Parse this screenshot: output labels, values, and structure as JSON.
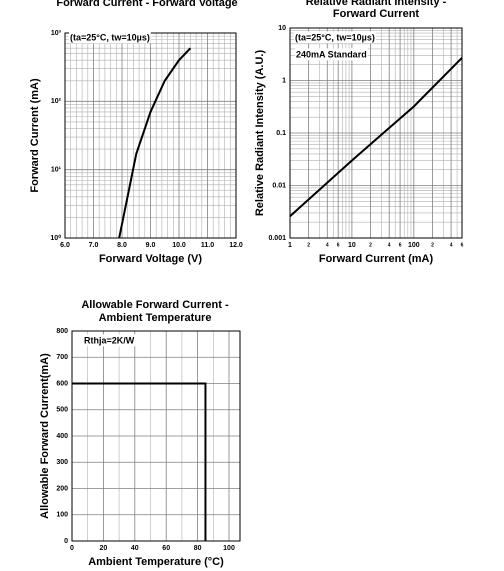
{
  "chart_data": [
    {
      "type": "line",
      "title": [
        "Forward Current - Forward Voltage"
      ],
      "x_label": "Forward Voltage (V)",
      "y_label": "Forward Current (mA)",
      "annotations": [
        "(ta=25°C, tw=10µs)"
      ],
      "xscale": "linear",
      "yscale": "log",
      "grid": true,
      "color": "#000000",
      "xlim": [
        6,
        12
      ],
      "xticks": [
        {
          "value": 6,
          "label": "6.0"
        },
        {
          "value": 7,
          "label": "7.0"
        },
        {
          "value": 8,
          "label": "8.0"
        },
        {
          "value": 9,
          "label": "9.0"
        },
        {
          "value": 10,
          "label": "10.0"
        },
        {
          "value": 11,
          "label": "11.0"
        },
        {
          "value": 12,
          "label": "12.0"
        }
      ],
      "ylim": [
        1,
        1000
      ],
      "yticks": [
        {
          "value": 1,
          "label": "10⁰"
        },
        {
          "value": 10,
          "label": "10¹"
        },
        {
          "value": 100,
          "label": "10²"
        },
        {
          "value": 1000,
          "label": "10³"
        }
      ],
      "x": [
        7.9,
        8.0,
        8.5,
        9.0,
        9.5,
        10.0,
        10.4
      ],
      "values": [
        1,
        1.6,
        17,
        70,
        200,
        400,
        600
      ]
    },
    {
      "type": "line",
      "title": [
        "Relative Radiant Intensity -",
        "Forward Current"
      ],
      "x_label": "Forward Current (mA)",
      "y_label": "Relative Radiant Intensity (A.U.)",
      "annotations": [
        "(ta=25°C, tw=10µs)",
        "240mA Standard"
      ],
      "xscale": "log",
      "yscale": "log",
      "grid": true,
      "color": "#000000",
      "xlim": [
        1,
        600
      ],
      "xticks": [
        1,
        2,
        4,
        6,
        10,
        {
          "value": 20,
          "label": "2"
        },
        {
          "value": 40,
          "label": "4"
        },
        {
          "value": 60,
          "label": "6"
        },
        100,
        {
          "value": 200,
          "label": "2"
        },
        {
          "value": 400,
          "label": "4"
        },
        {
          "value": 600,
          "label": "6"
        }
      ],
      "ylim": [
        0.001,
        10
      ],
      "yticks": [
        0.001,
        0.01,
        0.1,
        1,
        10
      ],
      "x": [
        1,
        10,
        100,
        600
      ],
      "values": [
        0.0026,
        0.03,
        0.32,
        2.7
      ]
    },
    {
      "type": "line",
      "title": [
        "Allowable Forward Current -",
        "Ambient Temperature"
      ],
      "x_label": "Ambient Temperature (°C)",
      "y_label": "Allowable Forward Current(mA)",
      "annotations": [
        "Rthja=2K/W"
      ],
      "xscale": "linear",
      "yscale": "linear",
      "grid": true,
      "color": "#000000",
      "xlim": [
        0,
        107
      ],
      "xticks": [
        0,
        20,
        40,
        60,
        80,
        100
      ],
      "ylim": [
        0,
        800
      ],
      "yticks": [
        0,
        100,
        200,
        300,
        400,
        500,
        600,
        700,
        800
      ],
      "x": [
        0,
        85,
        85
      ],
      "values": [
        600,
        600,
        0
      ]
    }
  ]
}
